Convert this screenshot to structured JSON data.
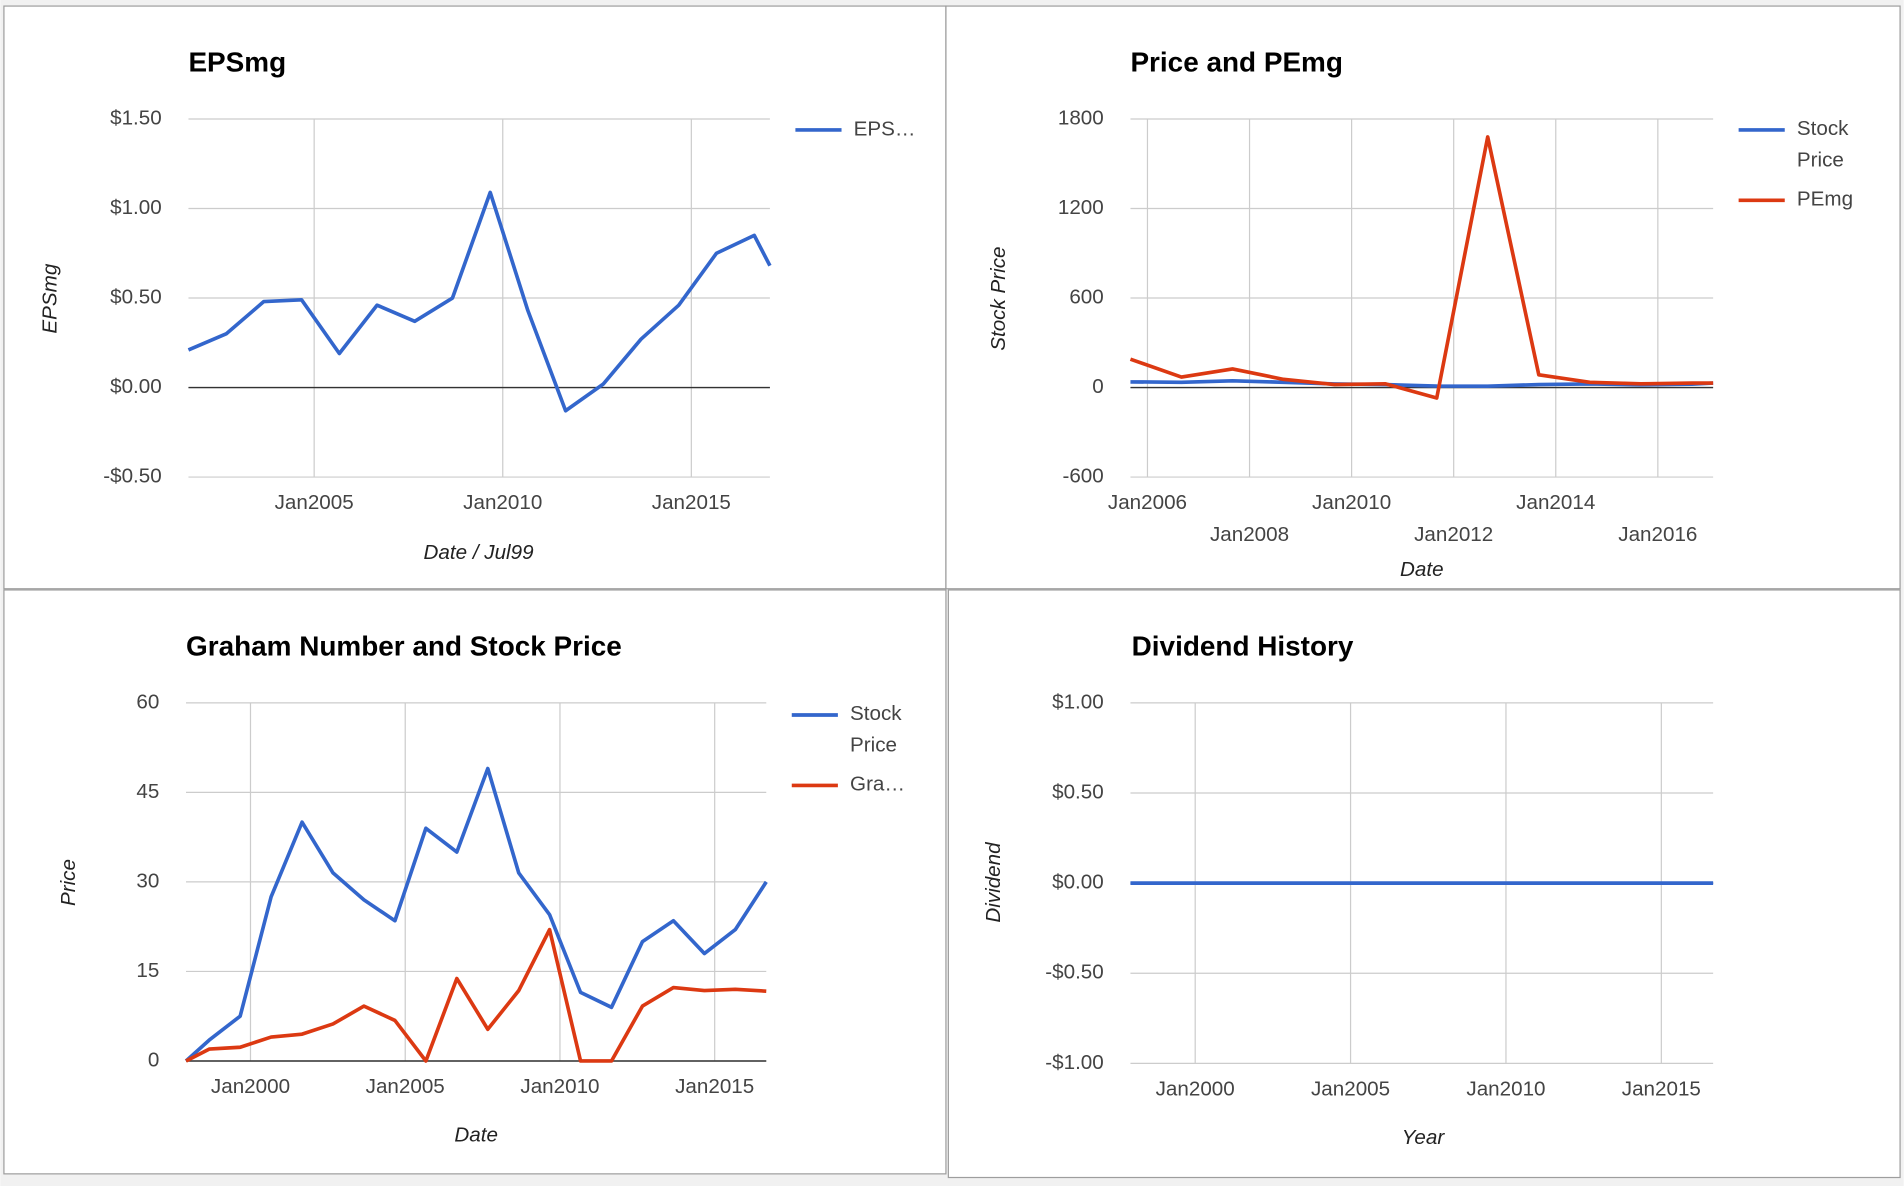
{
  "chart_data": [
    {
      "type": "line",
      "title": "EPSmg",
      "x_label": "Date / Jul99",
      "y_label": "EPSmg",
      "x": [
        "2001-09",
        "2002-09",
        "2003-09",
        "2004-09",
        "2005-09",
        "2006-09",
        "2007-09",
        "2008-09",
        "2009-09",
        "2010-09",
        "2011-09",
        "2012-09",
        "2013-09",
        "2014-09",
        "2015-09",
        "2016-09",
        "2017-02"
      ],
      "series": [
        {
          "name": "EPS…",
          "color": "#3366cc",
          "values": [
            0.21,
            0.3,
            0.48,
            0.49,
            0.19,
            0.46,
            0.37,
            0.5,
            1.09,
            0.43,
            -0.13,
            0.02,
            0.27,
            0.46,
            0.75,
            0.85,
            0.68
          ]
        }
      ],
      "xlim": [
        "2001-09",
        "2017-02"
      ],
      "xticks": [
        {
          "value": "2005-01",
          "label": "Jan2005"
        },
        {
          "value": "2010-01",
          "label": "Jan2010"
        },
        {
          "value": "2015-01",
          "label": "Jan2015"
        }
      ],
      "ylim": [
        -0.5,
        1.5
      ],
      "yticks": [
        {
          "value": -0.5,
          "label": "-$0.50"
        },
        {
          "value": 0,
          "label": "$0.00"
        },
        {
          "value": 0.5,
          "label": "$0.50"
        },
        {
          "value": 1,
          "label": "$1.00"
        },
        {
          "value": 1.5,
          "label": "$1.50"
        }
      ],
      "grid": true,
      "legend": "right"
    },
    {
      "type": "line",
      "title": "Price and PEmg",
      "x_label": "Date",
      "y_label": "Stock Price",
      "x": [
        "2005-09",
        "2006-09",
        "2007-09",
        "2008-09",
        "2009-09",
        "2010-09",
        "2011-09",
        "2012-09",
        "2013-09",
        "2014-09",
        "2015-09",
        "2016-09",
        "2017-02"
      ],
      "series": [
        {
          "name": "Stock Price",
          "color": "#3366cc",
          "values": [
            38,
            35,
            45,
            35,
            24,
            20,
            10,
            9,
            20,
            24,
            18,
            22,
            30
          ]
        },
        {
          "name": "PEmg",
          "color": "#dc3912",
          "values": [
            190,
            70,
            125,
            55,
            20,
            25,
            -70,
            1680,
            85,
            35,
            25,
            30,
            30
          ]
        }
      ],
      "xlim": [
        "2005-09",
        "2017-02"
      ],
      "xticks": [
        {
          "value": "2006-01",
          "label": "Jan2006"
        },
        {
          "value": "2008-01",
          "label": "Jan2008"
        },
        {
          "value": "2010-01",
          "label": "Jan2010"
        },
        {
          "value": "2012-01",
          "label": "Jan2012"
        },
        {
          "value": "2014-01",
          "label": "Jan2014"
        },
        {
          "value": "2016-01",
          "label": "Jan2016"
        }
      ],
      "ylim": [
        -600,
        1800
      ],
      "yticks": [
        -600,
        0,
        600,
        1200,
        1800
      ],
      "grid": true,
      "legend": "right"
    },
    {
      "type": "line",
      "title": "Graham Number and Stock Price",
      "x_label": "Date",
      "y_label": "Price",
      "x": [
        "1997-12",
        "1998-09",
        "1999-09",
        "2000-09",
        "2001-09",
        "2002-09",
        "2003-09",
        "2004-09",
        "2005-09",
        "2006-09",
        "2007-09",
        "2008-09",
        "2009-09",
        "2010-09",
        "2011-09",
        "2012-09",
        "2013-09",
        "2014-09",
        "2015-09",
        "2016-09"
      ],
      "series": [
        {
          "name": "Stock Price",
          "color": "#3366cc",
          "values": [
            0,
            3.5,
            7.5,
            27.5,
            40,
            31.5,
            27,
            23.5,
            39,
            35,
            49,
            31.5,
            24.5,
            11.5,
            9,
            20,
            23.5,
            18,
            22,
            30
          ]
        },
        {
          "name": "Gra…",
          "color": "#dc3912",
          "values": [
            0,
            2,
            2.3,
            4,
            4.5,
            6.2,
            9.2,
            6.8,
            0,
            13.8,
            5.3,
            11.8,
            22,
            0,
            0,
            9.2,
            12.3,
            11.8,
            12,
            11.7
          ]
        }
      ],
      "xlim": [
        "1997-12",
        "2016-09"
      ],
      "xticks": [
        {
          "value": "2000-01",
          "label": "Jan2000"
        },
        {
          "value": "2005-01",
          "label": "Jan2005"
        },
        {
          "value": "2010-01",
          "label": "Jan2010"
        },
        {
          "value": "2015-01",
          "label": "Jan2015"
        }
      ],
      "ylim": [
        0,
        60
      ],
      "yticks": [
        0,
        15,
        30,
        45,
        60
      ],
      "grid": true,
      "legend": "right"
    },
    {
      "type": "line",
      "title": "Dividend History",
      "x_label": "Year",
      "y_label": "Dividend",
      "x": [
        "1997-12",
        "1998-09",
        "1999-09",
        "2000-09",
        "2001-09",
        "2002-09",
        "2003-09",
        "2004-09",
        "2005-09",
        "2006-09",
        "2007-09",
        "2008-09",
        "2009-09",
        "2010-09",
        "2011-09",
        "2012-09",
        "2013-09",
        "2014-09",
        "2015-09",
        "2016-09"
      ],
      "series": [
        {
          "color": "#3366cc",
          "values": [
            0,
            0,
            0,
            0,
            0,
            0,
            0,
            0,
            0,
            0,
            0,
            0,
            0,
            0,
            0,
            0,
            0,
            0,
            0,
            0
          ]
        }
      ],
      "xlim": [
        "1997-12",
        "2016-09"
      ],
      "xticks": [
        {
          "value": "2000-01",
          "label": "Jan2000"
        },
        {
          "value": "2005-01",
          "label": "Jan2005"
        },
        {
          "value": "2010-01",
          "label": "Jan2010"
        },
        {
          "value": "2015-01",
          "label": "Jan2015"
        }
      ],
      "ylim": [
        -1,
        1
      ],
      "yticks": [
        {
          "value": -1,
          "label": "-$1.00"
        },
        {
          "value": -0.5,
          "label": "-$0.50"
        },
        {
          "value": 0,
          "label": "$0.00"
        },
        {
          "value": 0.5,
          "label": "$0.50"
        },
        {
          "value": 1,
          "label": "$1.00"
        }
      ],
      "grid": true
    }
  ]
}
